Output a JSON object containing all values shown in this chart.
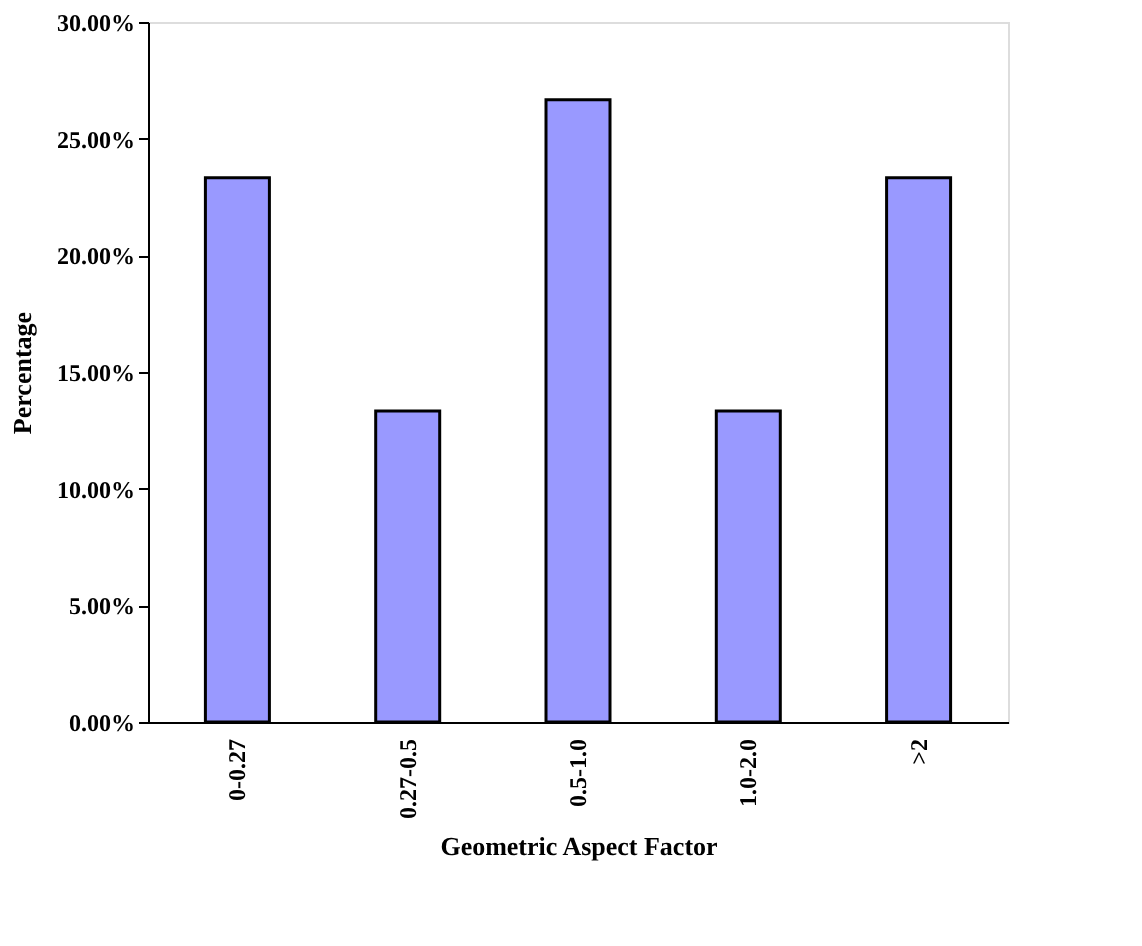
{
  "chart_data": {
    "type": "bar",
    "xlabel": "Geometric Aspect Factor",
    "ylabel": "Percentage",
    "categories": [
      "0-0.27",
      "0.27-0.5",
      "0.5-1.0",
      "1.0-2.0",
      ">2"
    ],
    "values": [
      23.33,
      13.33,
      26.67,
      13.33,
      23.33
    ],
    "color": "#9999ff",
    "ylim": [
      0,
      30
    ],
    "yticks": [
      {
        "value": 0,
        "label": "0.00%"
      },
      {
        "value": 5,
        "label": "5.00%"
      },
      {
        "value": 10,
        "label": "10.00%"
      },
      {
        "value": 15,
        "label": "15.00%"
      },
      {
        "value": 20,
        "label": "20.00%"
      },
      {
        "value": 25,
        "label": "25.00%"
      },
      {
        "value": 30,
        "label": "30.00%"
      }
    ],
    "grid": false
  }
}
